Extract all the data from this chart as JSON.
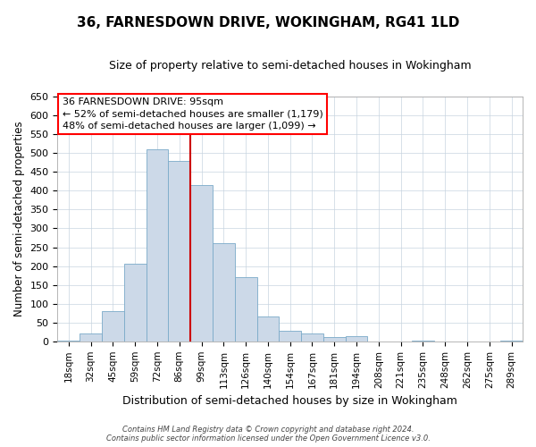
{
  "title": "36, FARNESDOWN DRIVE, WOKINGHAM, RG41 1LD",
  "subtitle": "Size of property relative to semi-detached houses in Wokingham",
  "xlabel": "Distribution of semi-detached houses by size in Wokingham",
  "ylabel": "Number of semi-detached properties",
  "bar_color": "#ccd9e8",
  "bar_edge_color": "#7aaac8",
  "bin_labels": [
    "18sqm",
    "32sqm",
    "45sqm",
    "59sqm",
    "72sqm",
    "86sqm",
    "99sqm",
    "113sqm",
    "126sqm",
    "140sqm",
    "154sqm",
    "167sqm",
    "181sqm",
    "194sqm",
    "208sqm",
    "221sqm",
    "235sqm",
    "248sqm",
    "262sqm",
    "275sqm",
    "289sqm"
  ],
  "bar_heights": [
    2,
    22,
    80,
    205,
    510,
    480,
    415,
    260,
    170,
    65,
    27,
    22,
    12,
    14,
    0,
    0,
    2,
    0,
    0,
    0,
    1
  ],
  "ylim": [
    0,
    650
  ],
  "yticks": [
    0,
    50,
    100,
    150,
    200,
    250,
    300,
    350,
    400,
    450,
    500,
    550,
    600,
    650
  ],
  "vline_x_idx": 6,
  "vline_color": "#cc0000",
  "annotation_title": "36 FARNESDOWN DRIVE: 95sqm",
  "annotation_line1": "← 52% of semi-detached houses are smaller (1,179)",
  "annotation_line2": "48% of semi-detached houses are larger (1,099) →",
  "footer1": "Contains HM Land Registry data © Crown copyright and database right 2024.",
  "footer2": "Contains public sector information licensed under the Open Government Licence v3.0.",
  "bg_color": "#ffffff",
  "plot_bg_color": "#ffffff",
  "grid_color": "#c8d4e0"
}
